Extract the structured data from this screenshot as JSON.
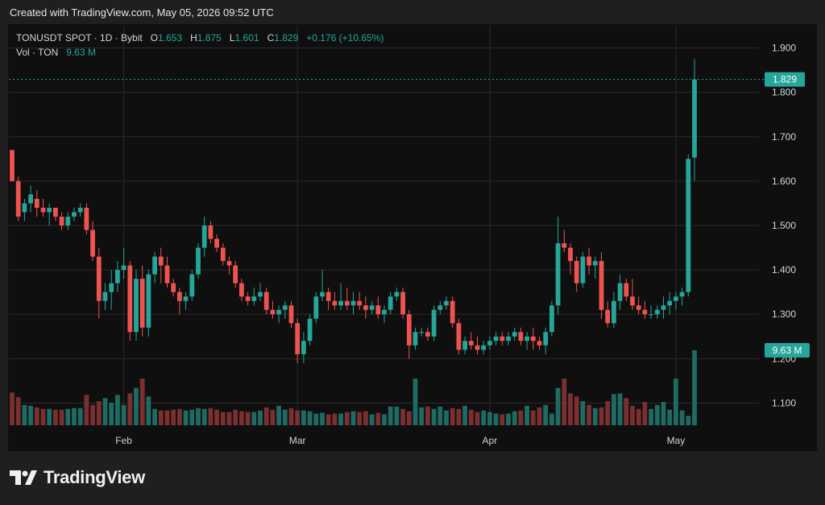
{
  "header": {
    "created_text": "Created with TradingView.com, May 05, 2026 09:52 UTC"
  },
  "legend": {
    "symbol": "TONUSDT SPOT · 1D · Bybit",
    "o_label": "O",
    "o_value": "1.653",
    "h_label": "H",
    "h_value": "1.875",
    "l_label": "L",
    "l_value": "1.601",
    "c_label": "C",
    "c_value": "1.829",
    "change": "+0.176 (+10.65%)",
    "vol_label": "Vol · TON",
    "vol_value": "9.63 M"
  },
  "brand": {
    "name": "TradingView",
    "logo_icon": "tradingview-logo-icon"
  },
  "colors": {
    "up": "#26a69a",
    "down": "#ef5350",
    "up_volume": "#1e6b63",
    "down_volume": "#7a2f31",
    "grid": "#2a2a2a",
    "background": "#0f0f0f"
  },
  "chart_data": {
    "type": "candlestick",
    "symbol": "TONUSDT SPOT",
    "interval": "1D",
    "exchange": "Bybit",
    "y_ticks": [
      "1.900",
      "1.800",
      "1.700",
      "1.600",
      "1.500",
      "1.400",
      "1.300",
      "1.200",
      "1.100"
    ],
    "ylim": [
      1.05,
      1.95
    ],
    "x_ticks": [
      {
        "label": "Feb",
        "index": 18
      },
      {
        "label": "Mar",
        "index": 46
      },
      {
        "label": "Apr",
        "index": 77
      },
      {
        "label": "May",
        "index": 107
      }
    ],
    "last_price": {
      "label": "1.829",
      "value": 1.829
    },
    "last_volume": {
      "label": "9.63 M",
      "value": 9.63
    },
    "volume_max": 12,
    "candles": [
      [
        1.67,
        1.67,
        1.6,
        1.6,
        4.2
      ],
      [
        1.6,
        1.61,
        1.51,
        1.52,
        3.6
      ],
      [
        1.53,
        1.56,
        1.51,
        1.55,
        2.6
      ],
      [
        1.55,
        1.59,
        1.53,
        1.57,
        2.5
      ],
      [
        1.56,
        1.58,
        1.52,
        1.54,
        2.3
      ],
      [
        1.54,
        1.56,
        1.52,
        1.53,
        2.1
      ],
      [
        1.53,
        1.55,
        1.5,
        1.54,
        2.1
      ],
      [
        1.54,
        1.54,
        1.51,
        1.52,
        2.0
      ],
      [
        1.52,
        1.53,
        1.49,
        1.5,
        2.0
      ],
      [
        1.5,
        1.53,
        1.49,
        1.52,
        2.1
      ],
      [
        1.52,
        1.54,
        1.51,
        1.53,
        2.2
      ],
      [
        1.53,
        1.55,
        1.52,
        1.54,
        2.2
      ],
      [
        1.54,
        1.55,
        1.48,
        1.49,
        3.9
      ],
      [
        1.49,
        1.51,
        1.42,
        1.43,
        2.6
      ],
      [
        1.43,
        1.45,
        1.29,
        1.33,
        3.1
      ],
      [
        1.33,
        1.37,
        1.31,
        1.35,
        3.5
      ],
      [
        1.35,
        1.4,
        1.31,
        1.37,
        2.9
      ],
      [
        1.37,
        1.42,
        1.35,
        1.4,
        3.9
      ],
      [
        1.4,
        1.45,
        1.38,
        1.41,
        2.6
      ],
      [
        1.41,
        1.42,
        1.24,
        1.26,
        4.1
      ],
      [
        1.26,
        1.4,
        1.24,
        1.38,
        4.8
      ],
      [
        1.38,
        1.41,
        1.25,
        1.27,
        6.0
      ],
      [
        1.27,
        1.4,
        1.25,
        1.39,
        3.7
      ],
      [
        1.39,
        1.44,
        1.37,
        1.43,
        2.1
      ],
      [
        1.43,
        1.45,
        1.37,
        1.41,
        1.9
      ],
      [
        1.41,
        1.43,
        1.36,
        1.37,
        1.9
      ],
      [
        1.37,
        1.38,
        1.34,
        1.35,
        2.0
      ],
      [
        1.35,
        1.36,
        1.3,
        1.33,
        2.1
      ],
      [
        1.33,
        1.35,
        1.31,
        1.34,
        1.9
      ],
      [
        1.34,
        1.4,
        1.33,
        1.39,
        2.0
      ],
      [
        1.39,
        1.46,
        1.38,
        1.45,
        2.2
      ],
      [
        1.45,
        1.52,
        1.43,
        1.5,
        2.1
      ],
      [
        1.5,
        1.51,
        1.46,
        1.47,
        2.2
      ],
      [
        1.47,
        1.48,
        1.44,
        1.45,
        2.0
      ],
      [
        1.45,
        1.46,
        1.41,
        1.42,
        1.7
      ],
      [
        1.42,
        1.43,
        1.39,
        1.41,
        1.7
      ],
      [
        1.41,
        1.42,
        1.36,
        1.37,
        2.0
      ],
      [
        1.37,
        1.38,
        1.33,
        1.34,
        1.8
      ],
      [
        1.34,
        1.35,
        1.32,
        1.33,
        1.7
      ],
      [
        1.33,
        1.36,
        1.32,
        1.34,
        1.7
      ],
      [
        1.34,
        1.37,
        1.33,
        1.35,
        1.9
      ],
      [
        1.35,
        1.36,
        1.3,
        1.31,
        2.3
      ],
      [
        1.31,
        1.33,
        1.29,
        1.3,
        2.0
      ],
      [
        1.3,
        1.32,
        1.28,
        1.31,
        2.5
      ],
      [
        1.31,
        1.33,
        1.29,
        1.32,
        2.0
      ],
      [
        1.32,
        1.33,
        1.27,
        1.28,
        2.2
      ],
      [
        1.28,
        1.29,
        1.19,
        1.21,
        1.9
      ],
      [
        1.21,
        1.26,
        1.19,
        1.24,
        1.9
      ],
      [
        1.24,
        1.3,
        1.23,
        1.29,
        1.8
      ],
      [
        1.29,
        1.35,
        1.28,
        1.34,
        1.5
      ],
      [
        1.34,
        1.4,
        1.33,
        1.35,
        1.6
      ],
      [
        1.35,
        1.36,
        1.31,
        1.33,
        1.4
      ],
      [
        1.33,
        1.35,
        1.31,
        1.32,
        1.5
      ],
      [
        1.32,
        1.37,
        1.31,
        1.33,
        1.5
      ],
      [
        1.33,
        1.36,
        1.31,
        1.32,
        1.7
      ],
      [
        1.32,
        1.35,
        1.3,
        1.33,
        1.8
      ],
      [
        1.33,
        1.35,
        1.31,
        1.32,
        1.7
      ],
      [
        1.32,
        1.34,
        1.29,
        1.31,
        1.8
      ],
      [
        1.31,
        1.33,
        1.3,
        1.32,
        1.4
      ],
      [
        1.32,
        1.34,
        1.29,
        1.3,
        1.6
      ],
      [
        1.3,
        1.32,
        1.28,
        1.31,
        1.4
      ],
      [
        1.31,
        1.35,
        1.3,
        1.34,
        2.4
      ],
      [
        1.34,
        1.36,
        1.33,
        1.35,
        2.4
      ],
      [
        1.35,
        1.36,
        1.29,
        1.3,
        2.1
      ],
      [
        1.3,
        1.31,
        1.2,
        1.23,
        1.8
      ],
      [
        1.23,
        1.27,
        1.22,
        1.26,
        6.0
      ],
      [
        1.26,
        1.27,
        1.25,
        1.26,
        2.3
      ],
      [
        1.26,
        1.27,
        1.24,
        1.25,
        2.4
      ],
      [
        1.25,
        1.32,
        1.24,
        1.31,
        2.1
      ],
      [
        1.31,
        1.33,
        1.3,
        1.32,
        2.4
      ],
      [
        1.32,
        1.34,
        1.31,
        1.33,
        1.9
      ],
      [
        1.33,
        1.34,
        1.27,
        1.28,
        2.2
      ],
      [
        1.28,
        1.29,
        1.21,
        1.22,
        2.1
      ],
      [
        1.22,
        1.25,
        1.21,
        1.24,
        2.5
      ],
      [
        1.24,
        1.26,
        1.22,
        1.23,
        2.0
      ],
      [
        1.23,
        1.25,
        1.21,
        1.22,
        1.7
      ],
      [
        1.22,
        1.24,
        1.21,
        1.23,
        1.9
      ],
      [
        1.23,
        1.25,
        1.22,
        1.24,
        1.7
      ],
      [
        1.24,
        1.26,
        1.23,
        1.25,
        1.5
      ],
      [
        1.25,
        1.26,
        1.23,
        1.24,
        1.4
      ],
      [
        1.24,
        1.26,
        1.23,
        1.25,
        1.5
      ],
      [
        1.25,
        1.27,
        1.24,
        1.26,
        1.8
      ],
      [
        1.26,
        1.27,
        1.23,
        1.24,
        1.9
      ],
      [
        1.24,
        1.26,
        1.22,
        1.25,
        2.5
      ],
      [
        1.25,
        1.27,
        1.22,
        1.24,
        1.9
      ],
      [
        1.24,
        1.25,
        1.22,
        1.23,
        2.3
      ],
      [
        1.23,
        1.27,
        1.21,
        1.26,
        2.6
      ],
      [
        1.26,
        1.33,
        1.25,
        1.32,
        1.5
      ],
      [
        1.32,
        1.52,
        1.3,
        1.46,
        4.8
      ],
      [
        1.46,
        1.49,
        1.44,
        1.45,
        6.0
      ],
      [
        1.45,
        1.46,
        1.39,
        1.42,
        4.1
      ],
      [
        1.42,
        1.43,
        1.35,
        1.37,
        3.7
      ],
      [
        1.37,
        1.44,
        1.36,
        1.43,
        3.1
      ],
      [
        1.43,
        1.45,
        1.39,
        1.41,
        2.6
      ],
      [
        1.41,
        1.43,
        1.38,
        1.42,
        2.2
      ],
      [
        1.42,
        1.44,
        1.29,
        1.31,
        2.3
      ],
      [
        1.31,
        1.33,
        1.27,
        1.28,
        3.1
      ],
      [
        1.28,
        1.35,
        1.27,
        1.33,
        4.0
      ],
      [
        1.33,
        1.39,
        1.31,
        1.37,
        4.1
      ],
      [
        1.37,
        1.38,
        1.33,
        1.34,
        3.5
      ],
      [
        1.34,
        1.38,
        1.31,
        1.32,
        2.5
      ],
      [
        1.32,
        1.34,
        1.3,
        1.31,
        2.1
      ],
      [
        1.31,
        1.33,
        1.29,
        1.3,
        3.0
      ],
      [
        1.3,
        1.32,
        1.29,
        1.3,
        2.1
      ],
      [
        1.3,
        1.32,
        1.29,
        1.31,
        2.6
      ],
      [
        1.31,
        1.34,
        1.29,
        1.32,
        3.0
      ],
      [
        1.32,
        1.35,
        1.3,
        1.33,
        2.0
      ],
      [
        1.33,
        1.35,
        1.31,
        1.34,
        6.0
      ],
      [
        1.34,
        1.36,
        1.32,
        1.35,
        1.9
      ],
      [
        1.35,
        1.66,
        1.34,
        1.65,
        1.2
      ],
      [
        1.653,
        1.875,
        1.601,
        1.829,
        9.63
      ]
    ]
  }
}
